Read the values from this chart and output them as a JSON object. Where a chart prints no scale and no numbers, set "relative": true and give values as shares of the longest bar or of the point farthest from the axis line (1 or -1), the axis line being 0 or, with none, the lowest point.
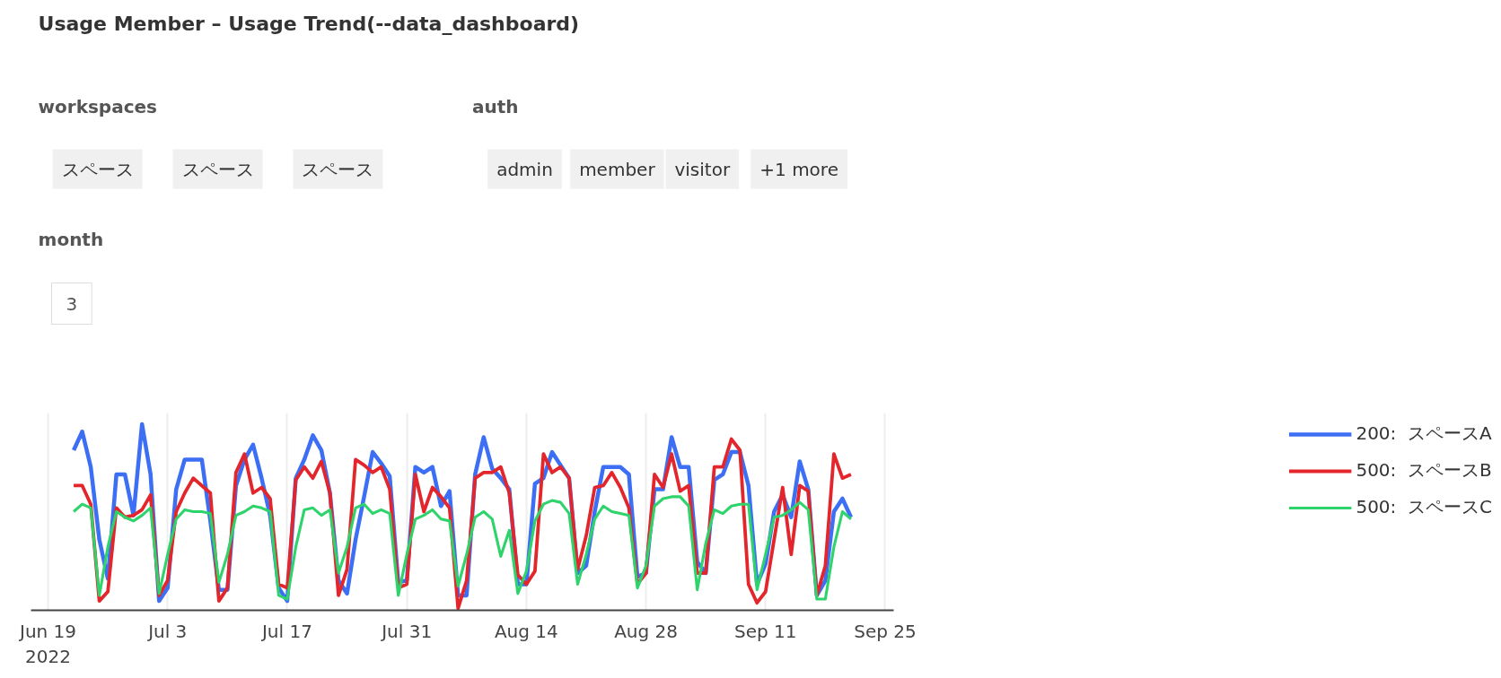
{
  "chart_data": [
    {
      "type": "other",
      "title": "Usage Member – Usage Trend(--data_dashboard)",
      "annotations": [
        "workspaces",
        "スペース",
        "スペース",
        "スペース",
        "auth",
        "admin",
        "member",
        "visitor",
        "+1 more",
        "month",
        "3"
      ]
    },
    {
      "type": "line",
      "relative": true,
      "grid": "x",
      "legend": "right",
      "x": [
        "2022-06-22",
        "2022-06-23",
        "2022-06-24",
        "2022-06-25",
        "2022-06-26",
        "2022-06-27",
        "2022-06-28",
        "2022-06-29",
        "2022-06-30",
        "2022-07-01",
        "2022-07-02",
        "2022-07-03",
        "2022-07-04",
        "2022-07-05",
        "2022-07-06",
        "2022-07-07",
        "2022-07-08",
        "2022-07-09",
        "2022-07-10",
        "2022-07-11",
        "2022-07-12",
        "2022-07-13",
        "2022-07-14",
        "2022-07-15",
        "2022-07-16",
        "2022-07-17",
        "2022-07-18",
        "2022-07-19",
        "2022-07-20",
        "2022-07-21",
        "2022-07-22",
        "2022-07-23",
        "2022-07-24",
        "2022-07-25",
        "2022-07-26",
        "2022-07-27",
        "2022-07-28",
        "2022-07-29",
        "2022-07-30",
        "2022-07-31",
        "2022-08-01",
        "2022-08-02",
        "2022-08-03",
        "2022-08-04",
        "2022-08-05",
        "2022-08-06",
        "2022-08-07",
        "2022-08-08",
        "2022-08-09",
        "2022-08-10",
        "2022-08-11",
        "2022-08-12",
        "2022-08-13",
        "2022-08-14",
        "2022-08-15",
        "2022-08-16",
        "2022-08-17",
        "2022-08-18",
        "2022-08-19",
        "2022-08-20",
        "2022-08-21",
        "2022-08-22",
        "2022-08-23",
        "2022-08-24",
        "2022-08-25",
        "2022-08-26",
        "2022-08-27",
        "2022-08-28",
        "2022-08-29",
        "2022-08-30",
        "2022-08-31",
        "2022-09-01",
        "2022-09-02",
        "2022-09-03",
        "2022-09-04",
        "2022-09-05",
        "2022-09-06",
        "2022-09-07",
        "2022-09-08",
        "2022-09-09",
        "2022-09-10",
        "2022-09-11",
        "2022-09-12",
        "2022-09-13",
        "2022-09-14",
        "2022-09-15",
        "2022-09-16",
        "2022-09-17",
        "2022-09-18",
        "2022-09-19",
        "2022-09-20",
        "2022-09-21"
      ],
      "xlim": [
        "2022-06-17",
        "2022-09-26"
      ],
      "xticks": [
        {
          "value": "2022-06-19",
          "label": "Jun 19\n2022"
        },
        {
          "value": "2022-07-03",
          "label": "Jul 3"
        },
        {
          "value": "2022-07-17",
          "label": "Jul 17"
        },
        {
          "value": "2022-07-31",
          "label": "Jul 31"
        },
        {
          "value": "2022-08-14",
          "label": "Aug 14"
        },
        {
          "value": "2022-08-28",
          "label": "Aug 28"
        },
        {
          "value": "2022-09-11",
          "label": "Sep 11"
        },
        {
          "value": "2022-09-25",
          "label": "Sep 25"
        }
      ],
      "series": [
        {
          "name": "200:  スペースA",
          "color": "#3d6ff5",
          "values": [
            0.86,
            0.96,
            0.77,
            0.38,
            0.17,
            0.73,
            0.73,
            0.51,
            1.0,
            0.73,
            0.05,
            0.12,
            0.65,
            0.81,
            0.81,
            0.81,
            0.48,
            0.11,
            0.11,
            0.67,
            0.81,
            0.89,
            0.71,
            0.51,
            0.12,
            0.05,
            0.71,
            0.81,
            0.94,
            0.86,
            0.63,
            0.16,
            0.09,
            0.38,
            0.61,
            0.85,
            0.79,
            0.72,
            0.15,
            0.16,
            0.77,
            0.74,
            0.77,
            0.56,
            0.64,
            0.08,
            0.08,
            0.73,
            0.93,
            0.76,
            0.71,
            0.65,
            0.14,
            0.14,
            0.68,
            0.71,
            0.85,
            0.78,
            0.71,
            0.2,
            0.24,
            0.53,
            0.77,
            0.77,
            0.77,
            0.73,
            0.18,
            0.2,
            0.65,
            0.65,
            0.93,
            0.77,
            0.77,
            0.26,
            0.2,
            0.7,
            0.73,
            0.85,
            0.85,
            0.67,
            0.14,
            0.25,
            0.53,
            0.62,
            0.5,
            0.8,
            0.65,
            0.08,
            0.16,
            0.53,
            0.6,
            0.5
          ]
        },
        {
          "name": "500:  スペースB",
          "color": "#e3262b",
          "values": [
            0.67,
            0.67,
            0.57,
            0.05,
            0.1,
            0.55,
            0.5,
            0.51,
            0.54,
            0.62,
            0.08,
            0.16,
            0.53,
            0.63,
            0.71,
            0.67,
            0.63,
            0.05,
            0.12,
            0.74,
            0.84,
            0.63,
            0.66,
            0.6,
            0.14,
            0.12,
            0.7,
            0.77,
            0.71,
            0.8,
            0.63,
            0.08,
            0.22,
            0.81,
            0.78,
            0.74,
            0.77,
            0.65,
            0.12,
            0.14,
            0.73,
            0.53,
            0.66,
            0.61,
            0.55,
            0.01,
            0.16,
            0.71,
            0.74,
            0.74,
            0.77,
            0.63,
            0.19,
            0.14,
            0.21,
            0.84,
            0.74,
            0.77,
            0.71,
            0.22,
            0.4,
            0.66,
            0.67,
            0.74,
            0.66,
            0.55,
            0.14,
            0.2,
            0.73,
            0.66,
            0.84,
            0.64,
            0.67,
            0.2,
            0.2,
            0.77,
            0.77,
            0.92,
            0.86,
            0.14,
            0.04,
            0.1,
            0.38,
            0.66,
            0.3,
            0.67,
            0.64,
            0.08,
            0.24,
            0.84,
            0.71,
            0.73
          ]
        },
        {
          "name": "500:  スペースC",
          "color": "#2fd36b",
          "values": [
            0.53,
            0.57,
            0.55,
            0.08,
            0.34,
            0.53,
            0.5,
            0.48,
            0.51,
            0.55,
            0.09,
            0.3,
            0.49,
            0.54,
            0.53,
            0.53,
            0.52,
            0.15,
            0.3,
            0.51,
            0.53,
            0.56,
            0.55,
            0.53,
            0.08,
            0.06,
            0.34,
            0.54,
            0.55,
            0.51,
            0.54,
            0.2,
            0.34,
            0.55,
            0.57,
            0.52,
            0.54,
            0.52,
            0.08,
            0.3,
            0.49,
            0.51,
            0.54,
            0.49,
            0.48,
            0.13,
            0.3,
            0.5,
            0.53,
            0.49,
            0.29,
            0.43,
            0.09,
            0.21,
            0.48,
            0.57,
            0.59,
            0.58,
            0.52,
            0.14,
            0.3,
            0.49,
            0.56,
            0.53,
            0.52,
            0.51,
            0.12,
            0.24,
            0.56,
            0.6,
            0.61,
            0.61,
            0.56,
            0.11,
            0.36,
            0.54,
            0.52,
            0.56,
            0.57,
            0.57,
            0.11,
            0.3,
            0.5,
            0.51,
            0.54,
            0.58,
            0.54,
            0.06,
            0.06,
            0.34,
            0.53,
            0.49
          ]
        }
      ]
    }
  ]
}
